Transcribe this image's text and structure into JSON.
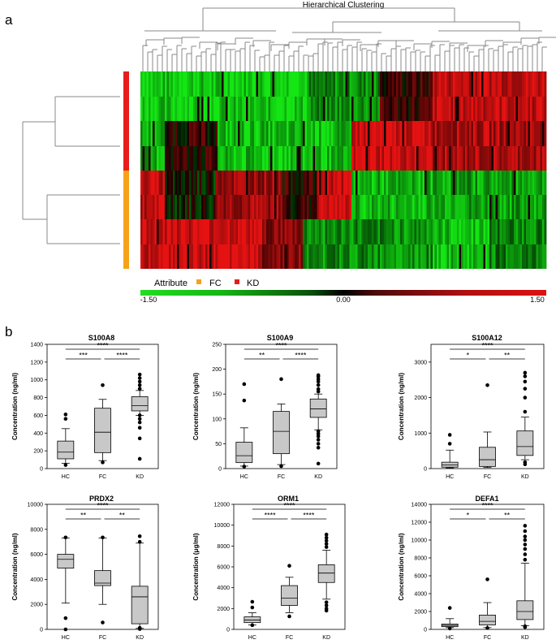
{
  "panel_a": {
    "label": "a",
    "title": "Hierarchical Clustering",
    "legend": {
      "title": "Attribute",
      "items": [
        {
          "name": "FC",
          "color": "#f5a21a"
        },
        {
          "name": "KD",
          "color": "#e81c1c"
        }
      ]
    },
    "colorbar": {
      "min": "-1.50",
      "mid": "0.00",
      "max": "1.50",
      "colors": [
        "#22dd22",
        "#000000",
        "#dd1111"
      ]
    },
    "row_groups": [
      "KD",
      "KD",
      "FC",
      "FC"
    ]
  },
  "panel_b": {
    "label": "b"
  },
  "chart_data": [
    {
      "type": "boxplot",
      "title": "S100A8",
      "ylabel": "Concentration (ng/ml)",
      "ylim": [
        0,
        1400
      ],
      "yticks": [
        0,
        200,
        400,
        600,
        800,
        1000,
        1200,
        1400
      ],
      "categories": [
        "HC",
        "FC",
        "KD"
      ],
      "boxes": [
        {
          "group": "HC",
          "whisker_low": 60,
          "q1": 110,
          "median": 185,
          "q3": 310,
          "whisker_high": 450,
          "outliers": [
            40,
            560,
            610
          ]
        },
        {
          "group": "FC",
          "whisker_low": 90,
          "q1": 180,
          "median": 410,
          "q3": 680,
          "whisker_high": 780,
          "outliers": [
            940,
            70
          ]
        },
        {
          "group": "KD",
          "whisker_low": 600,
          "q1": 650,
          "median": 710,
          "q3": 810,
          "whisker_high": 880,
          "outliers": [
            900,
            940,
            980,
            1020,
            1060,
            600,
            560,
            520,
            460,
            340,
            110
          ]
        }
      ],
      "significance": [
        {
          "from": "HC",
          "to": "FC",
          "label": "***"
        },
        {
          "from": "FC",
          "to": "KD",
          "label": "****"
        },
        {
          "from": "HC",
          "to": "KD",
          "label": "****"
        }
      ]
    },
    {
      "type": "boxplot",
      "title": "S100A9",
      "ylabel": "Concentration (ng/ml)",
      "ylim": [
        0,
        250
      ],
      "yticks": [
        0,
        50,
        100,
        150,
        200,
        250
      ],
      "categories": [
        "HC",
        "FC",
        "KD"
      ],
      "boxes": [
        {
          "group": "HC",
          "whisker_low": 5,
          "q1": 12,
          "median": 26,
          "q3": 53,
          "whisker_high": 82,
          "outliers": [
            137,
            170,
            4
          ]
        },
        {
          "group": "FC",
          "whisker_low": 8,
          "q1": 30,
          "median": 75,
          "q3": 115,
          "whisker_high": 130,
          "outliers": [
            180,
            5
          ]
        },
        {
          "group": "KD",
          "whisker_low": 78,
          "q1": 103,
          "median": 120,
          "q3": 140,
          "whisker_high": 150,
          "outliers": [
            155,
            160,
            168,
            175,
            180,
            185,
            188,
            75,
            70,
            65,
            58,
            50,
            42,
            10
          ]
        }
      ],
      "significance": [
        {
          "from": "HC",
          "to": "FC",
          "label": "**"
        },
        {
          "from": "FC",
          "to": "KD",
          "label": "****"
        },
        {
          "from": "HC",
          "to": "KD",
          "label": "****"
        }
      ]
    },
    {
      "type": "boxplot",
      "title": "S100A12",
      "ylabel": "Concentration (ng/ml)",
      "ylim": [
        0,
        3500
      ],
      "yticks": [
        0,
        1000,
        2000,
        3000
      ],
      "categories": [
        "HC",
        "FC",
        "KD"
      ],
      "boxes": [
        {
          "group": "HC",
          "whisker_low": 20,
          "q1": 40,
          "median": 100,
          "q3": 180,
          "whisker_high": 520,
          "outliers": [
            700,
            950
          ]
        },
        {
          "group": "FC",
          "whisker_low": 30,
          "q1": 60,
          "median": 250,
          "q3": 600,
          "whisker_high": 1030,
          "outliers": [
            2350
          ]
        },
        {
          "group": "KD",
          "whisker_low": 250,
          "q1": 370,
          "median": 620,
          "q3": 1060,
          "whisker_high": 1450,
          "outliers": [
            1600,
            2000,
            2250,
            2450,
            2600,
            2700,
            180,
            120
          ]
        }
      ],
      "significance": [
        {
          "from": "HC",
          "to": "FC",
          "label": "*"
        },
        {
          "from": "FC",
          "to": "KD",
          "label": "**"
        },
        {
          "from": "HC",
          "to": "KD",
          "label": "****"
        }
      ]
    },
    {
      "type": "boxplot",
      "title": "PRDX2",
      "ylabel": "Concentration (ng/ml)",
      "ylim": [
        0,
        10000
      ],
      "yticks": [
        0,
        2000,
        4000,
        6000,
        8000,
        10000
      ],
      "categories": [
        "HC",
        "FC",
        "KD"
      ],
      "boxes": [
        {
          "group": "HC",
          "whisker_low": 2100,
          "q1": 4900,
          "median": 5600,
          "q3": 6000,
          "whisker_high": 7300,
          "outliers": [
            7350,
            900,
            0
          ]
        },
        {
          "group": "FC",
          "whisker_low": 2000,
          "q1": 3500,
          "median": 3700,
          "q3": 4700,
          "whisker_high": 7300,
          "outliers": [
            7350,
            550
          ]
        },
        {
          "group": "KD",
          "whisker_low": 80,
          "q1": 450,
          "median": 2600,
          "q3": 3450,
          "whisker_high": 6900,
          "outliers": [
            7000,
            7450,
            120,
            30
          ]
        }
      ],
      "significance": [
        {
          "from": "HC",
          "to": "FC",
          "label": "**"
        },
        {
          "from": "FC",
          "to": "KD",
          "label": "**"
        },
        {
          "from": "HC",
          "to": "KD",
          "label": "****"
        }
      ]
    },
    {
      "type": "boxplot",
      "title": "ORM1",
      "ylabel": "Concentration (μg/ml)",
      "ylim": [
        0,
        12000
      ],
      "yticks": [
        0,
        2000,
        4000,
        6000,
        8000,
        10000,
        12000
      ],
      "categories": [
        "HC",
        "FC",
        "KD"
      ],
      "boxes": [
        {
          "group": "HC",
          "whisker_low": 420,
          "q1": 650,
          "median": 900,
          "q3": 1200,
          "whisker_high": 1600,
          "outliers": [
            2100,
            2650,
            400
          ]
        },
        {
          "group": "FC",
          "whisker_low": 1600,
          "q1": 2300,
          "median": 3000,
          "q3": 4200,
          "whisker_high": 5000,
          "outliers": [
            6100,
            1250
          ]
        },
        {
          "group": "KD",
          "whisker_low": 2900,
          "q1": 4500,
          "median": 5400,
          "q3": 6200,
          "whisker_high": 7600,
          "outliers": [
            7900,
            8200,
            8500,
            8800,
            9100,
            2600,
            2300,
            2000,
            1800
          ]
        }
      ],
      "significance": [
        {
          "from": "HC",
          "to": "FC",
          "label": "****"
        },
        {
          "from": "FC",
          "to": "KD",
          "label": "****"
        },
        {
          "from": "HC",
          "to": "KD",
          "label": "****"
        }
      ]
    },
    {
      "type": "boxplot",
      "title": "DEFA1",
      "ylabel": "Concentration (ng/ml)",
      "ylim": [
        0,
        14000
      ],
      "yticks": [
        0,
        2000,
        4000,
        6000,
        8000,
        10000,
        12000,
        14000
      ],
      "categories": [
        "HC",
        "FC",
        "KD"
      ],
      "boxes": [
        {
          "group": "HC",
          "whisker_low": 200,
          "q1": 300,
          "median": 450,
          "q3": 600,
          "whisker_high": 1200,
          "outliers": [
            2400,
            100
          ]
        },
        {
          "group": "FC",
          "whisker_low": 200,
          "q1": 500,
          "median": 900,
          "q3": 1600,
          "whisker_high": 3000,
          "outliers": [
            5600,
            150
          ]
        },
        {
          "group": "KD",
          "whisker_low": 400,
          "q1": 1100,
          "median": 2000,
          "q3": 3200,
          "whisker_high": 7400,
          "outliers": [
            7800,
            8400,
            9000,
            9500,
            10000,
            10400,
            11000,
            11600,
            350,
            250
          ]
        }
      ],
      "significance": [
        {
          "from": "HC",
          "to": "FC",
          "label": "*"
        },
        {
          "from": "FC",
          "to": "KD",
          "label": "**"
        },
        {
          "from": "HC",
          "to": "KD",
          "label": "****"
        }
      ]
    }
  ]
}
